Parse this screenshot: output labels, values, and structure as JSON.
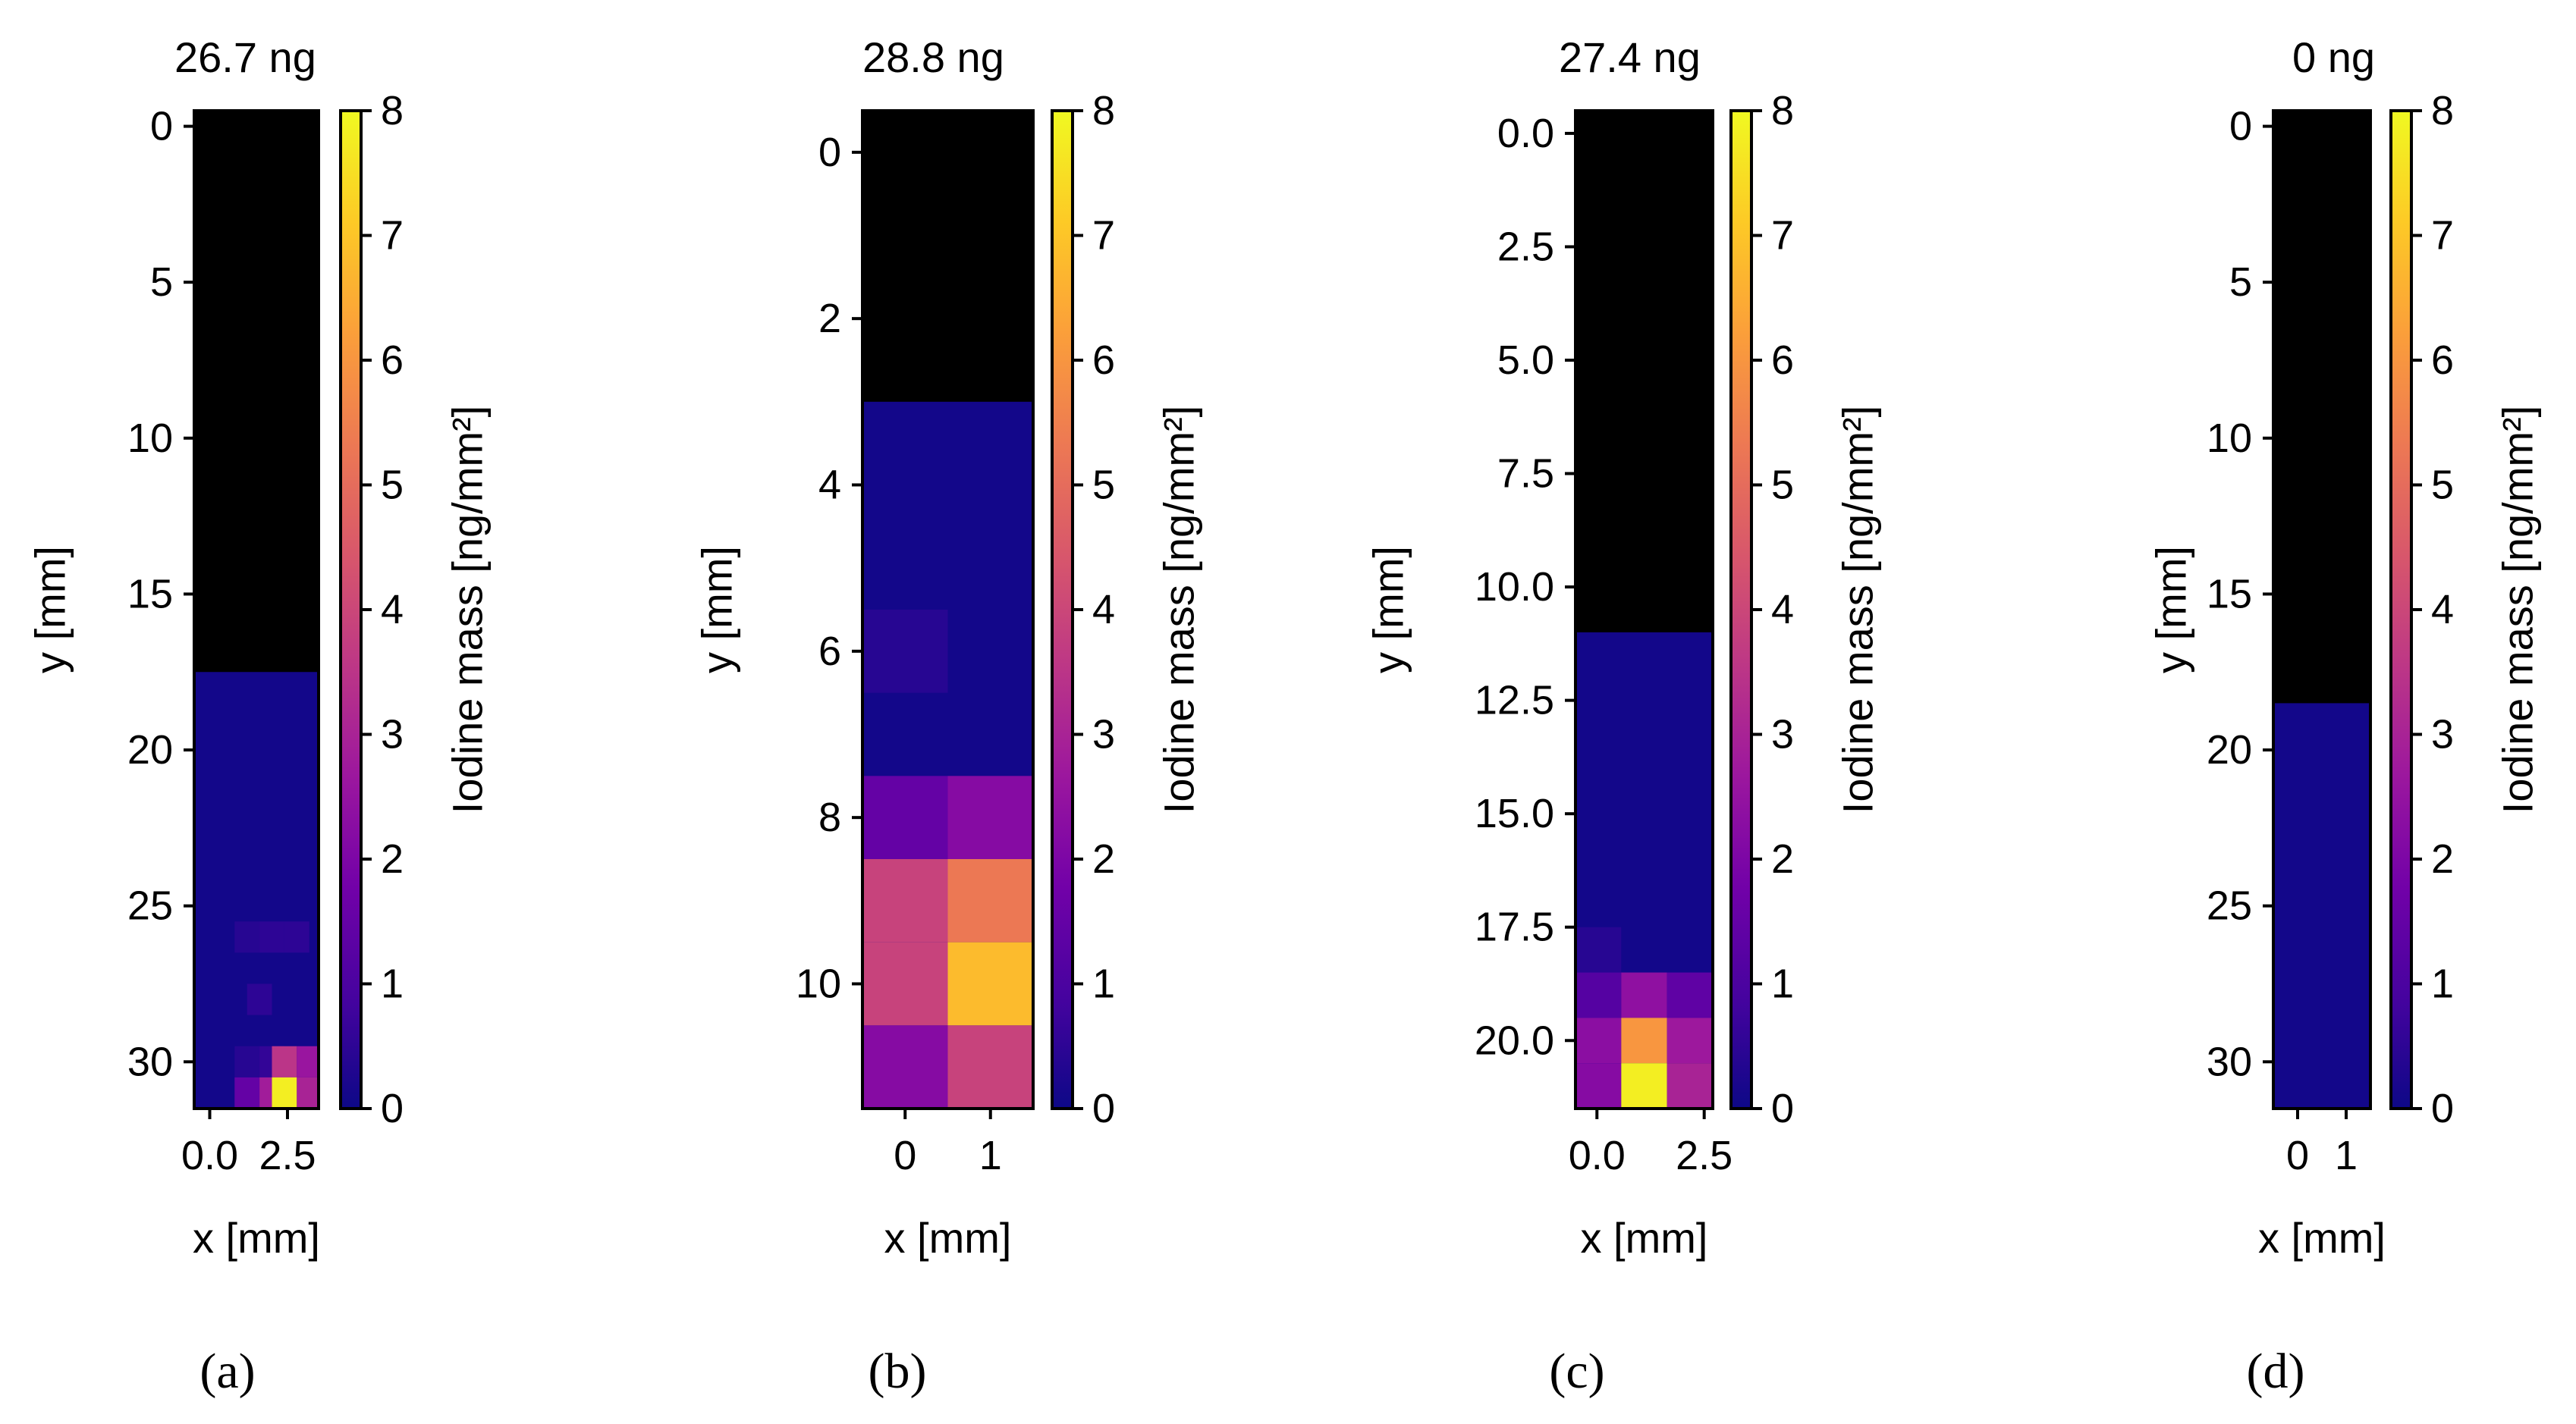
{
  "colormap": {
    "name": "plasma",
    "stops": [
      "#0d0887",
      "#46039f",
      "#7201a8",
      "#9c179e",
      "#bd3786",
      "#d8576b",
      "#ed7953",
      "#fb9f3a",
      "#fdca26",
      "#f0f921"
    ],
    "empty_color": "#000000"
  },
  "chart_data": [
    {
      "type": "heatmap",
      "panel": "a",
      "caption": "(a)",
      "title": "26.7 ng",
      "xlabel": "x [mm]",
      "ylabel": "y [mm]",
      "colorbar_label": "Iodine mass [ng/mm²]",
      "colorbar_range": [
        0,
        8
      ],
      "colorbar_ticks": [
        "0",
        "1",
        "2",
        "3",
        "4",
        "5",
        "6",
        "7",
        "8"
      ],
      "x_range": [
        -0.5,
        3.5
      ],
      "y_range": [
        31.5,
        -0.5
      ],
      "x_ticks": [
        {
          "v": 0,
          "t": "0.0"
        },
        {
          "v": 2.5,
          "t": "2.5"
        }
      ],
      "y_ticks": [
        {
          "v": 0,
          "t": "0"
        },
        {
          "v": 5,
          "t": "5"
        },
        {
          "v": 10,
          "t": "10"
        },
        {
          "v": 15,
          "t": "15"
        },
        {
          "v": 20,
          "t": "20"
        },
        {
          "v": 25,
          "t": "25"
        },
        {
          "v": 30,
          "t": "30"
        }
      ],
      "cell_width": 0.8,
      "cell_height": 1,
      "no_data_region": [
        -0.5,
        17.5
      ],
      "background_value": 0.1,
      "cells": [
        {
          "x": 1.2,
          "y": 26,
          "v": 0.4
        },
        {
          "x": 2.0,
          "y": 26,
          "v": 0.5
        },
        {
          "x": 2.8,
          "y": 26,
          "v": 0.5
        },
        {
          "x": 1.6,
          "y": 28,
          "v": 0.5
        },
        {
          "x": 1.2,
          "y": 30,
          "v": 0.4
        },
        {
          "x": 2.0,
          "y": 30,
          "v": 0.6
        },
        {
          "x": 2.4,
          "y": 30,
          "v": 3.5
        },
        {
          "x": 3.2,
          "y": 30,
          "v": 2.6
        },
        {
          "x": 1.2,
          "y": 31,
          "v": 1.5
        },
        {
          "x": 2.0,
          "y": 31,
          "v": 2.8
        },
        {
          "x": 2.4,
          "y": 31,
          "v": 7.8
        },
        {
          "x": 3.2,
          "y": 31,
          "v": 3.0
        }
      ]
    },
    {
      "type": "heatmap",
      "panel": "b",
      "caption": "(b)",
      "title": "28.8 ng",
      "xlabel": "x [mm]",
      "ylabel": "y [mm]",
      "colorbar_label": "Iodine mass [ng/mm²]",
      "colorbar_range": [
        0,
        8
      ],
      "colorbar_ticks": [
        "0",
        "1",
        "2",
        "3",
        "4",
        "5",
        "6",
        "7",
        "8"
      ],
      "x_range": [
        -0.5,
        1.5
      ],
      "y_range": [
        11.5,
        -0.5
      ],
      "x_ticks": [
        {
          "v": 0,
          "t": "0"
        },
        {
          "v": 1,
          "t": "1"
        }
      ],
      "y_ticks": [
        {
          "v": 0,
          "t": "0"
        },
        {
          "v": 2,
          "t": "2"
        },
        {
          "v": 4,
          "t": "4"
        },
        {
          "v": 6,
          "t": "6"
        },
        {
          "v": 8,
          "t": "8"
        },
        {
          "v": 10,
          "t": "10"
        }
      ],
      "cell_width": 1,
      "cell_height": 1,
      "no_data_region": [
        -0.5,
        3.0
      ],
      "background_value": 0.1,
      "cells": [
        {
          "x": 0,
          "y": 6,
          "v": 0.4
        },
        {
          "x": 0,
          "y": 8,
          "v": 1.5
        },
        {
          "x": 1,
          "y": 8,
          "v": 2.2
        },
        {
          "x": 0,
          "y": 9,
          "v": 3.9
        },
        {
          "x": 1,
          "y": 9,
          "v": 5.3
        },
        {
          "x": 0,
          "y": 10,
          "v": 3.9
        },
        {
          "x": 1,
          "y": 10,
          "v": 6.8
        },
        {
          "x": 0,
          "y": 11,
          "v": 2.2
        },
        {
          "x": 1,
          "y": 11,
          "v": 3.9
        }
      ]
    },
    {
      "type": "heatmap",
      "panel": "c",
      "caption": "(c)",
      "title": "27.4 ng",
      "xlabel": "x [mm]",
      "ylabel": "y [mm]",
      "colorbar_label": "Iodine mass [ng/mm²]",
      "colorbar_range": [
        0,
        8
      ],
      "colorbar_ticks": [
        "0",
        "1",
        "2",
        "3",
        "4",
        "5",
        "6",
        "7",
        "8"
      ],
      "x_range": [
        -0.5,
        2.7
      ],
      "y_range": [
        21.5,
        -0.5
      ],
      "x_ticks": [
        {
          "v": 0,
          "t": "0.0"
        },
        {
          "v": 2.5,
          "t": "2.5"
        }
      ],
      "y_ticks": [
        {
          "v": 0,
          "t": "0.0"
        },
        {
          "v": 2.5,
          "t": "2.5"
        },
        {
          "v": 5,
          "t": "5.0"
        },
        {
          "v": 7.5,
          "t": "7.5"
        },
        {
          "v": 10,
          "t": "10.0"
        },
        {
          "v": 12.5,
          "t": "12.5"
        },
        {
          "v": 15,
          "t": "15.0"
        },
        {
          "v": 17.5,
          "t": "17.5"
        },
        {
          "v": 20,
          "t": "20.0"
        }
      ],
      "cell_width": 1.067,
      "cell_height": 1,
      "no_data_region": [
        -0.5,
        11.0
      ],
      "background_value": 0.1,
      "cells": [
        {
          "x": 0.033,
          "y": 18,
          "v": 0.4
        },
        {
          "x": 0.033,
          "y": 19,
          "v": 1.2
        },
        {
          "x": 1.1,
          "y": 19,
          "v": 2.4
        },
        {
          "x": 2.167,
          "y": 19,
          "v": 1.4
        },
        {
          "x": 0.033,
          "y": 20,
          "v": 2.3
        },
        {
          "x": 1.1,
          "y": 20,
          "v": 6.0
        },
        {
          "x": 2.167,
          "y": 20,
          "v": 2.7
        },
        {
          "x": 0.033,
          "y": 21,
          "v": 2.2
        },
        {
          "x": 1.1,
          "y": 21,
          "v": 7.8
        },
        {
          "x": 2.167,
          "y": 21,
          "v": 3.0
        }
      ]
    },
    {
      "type": "heatmap",
      "panel": "d",
      "caption": "(d)",
      "title": "0 ng",
      "xlabel": "x [mm]",
      "ylabel": "y [mm]",
      "colorbar_label": "Iodine mass [ng/mm²]",
      "colorbar_range": [
        0,
        8
      ],
      "colorbar_ticks": [
        "0",
        "1",
        "2",
        "3",
        "4",
        "5",
        "6",
        "7",
        "8"
      ],
      "x_range": [
        -0.5,
        1.5
      ],
      "y_range": [
        31.5,
        -0.5
      ],
      "x_ticks": [
        {
          "v": 0,
          "t": "0"
        },
        {
          "v": 1,
          "t": "1"
        }
      ],
      "y_ticks": [
        {
          "v": 0,
          "t": "0"
        },
        {
          "v": 5,
          "t": "5"
        },
        {
          "v": 10,
          "t": "10"
        },
        {
          "v": 15,
          "t": "15"
        },
        {
          "v": 20,
          "t": "20"
        },
        {
          "v": 25,
          "t": "25"
        },
        {
          "v": 30,
          "t": "30"
        }
      ],
      "cell_width": 1,
      "cell_height": 1,
      "no_data_region": [
        -0.5,
        18.5
      ],
      "background_value": 0.1,
      "cells": []
    }
  ]
}
